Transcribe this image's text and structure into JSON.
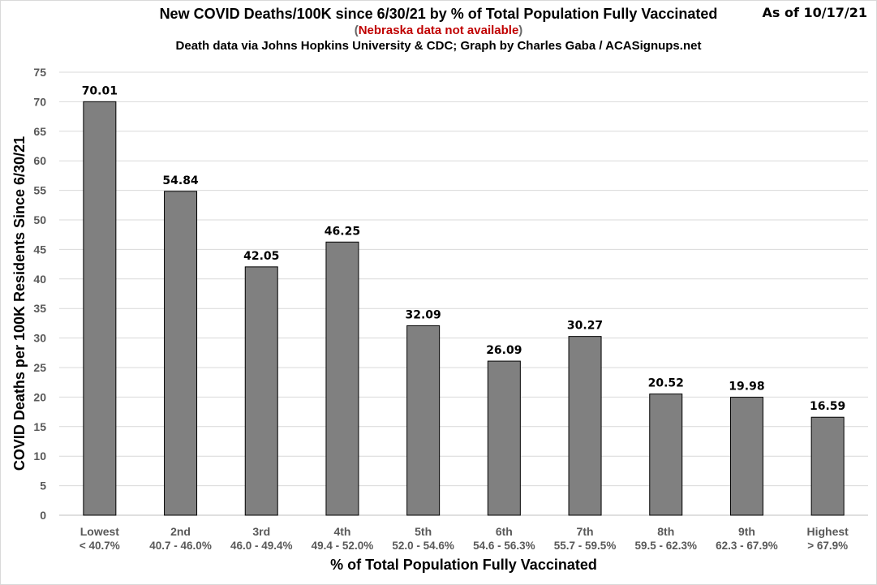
{
  "title": {
    "line1": "New COVID Deaths/100K since 6/30/21 by % of Total Population Fully Vaccinated",
    "line2_open": "(",
    "line2_red": "Nebraska data not available",
    "line2_close": ")",
    "line3": "Death data via Johns Hopkins University & CDC; Graph by Charles Gaba / ACASignups.net"
  },
  "as_of": "As of 10/17/21",
  "chart_data": {
    "type": "bar",
    "title": "New COVID Deaths/100K since 6/30/21 by % of Total Population Fully Vaccinated",
    "xlabel": "% of Total Population Fully Vaccinated",
    "ylabel": "COVID Deaths per 100K Residents Since 6/30/21",
    "ylim": [
      0,
      75
    ],
    "yticks": [
      0,
      5,
      10,
      15,
      20,
      25,
      30,
      35,
      40,
      45,
      50,
      55,
      60,
      65,
      70,
      75
    ],
    "grid": true,
    "bar_color": "#808080",
    "categories": [
      {
        "name": "Lowest",
        "range": "< 40.7%"
      },
      {
        "name": "2nd",
        "range": "40.7 - 46.0%"
      },
      {
        "name": "3rd",
        "range": "46.0 - 49.4%"
      },
      {
        "name": "4th",
        "range": "49.4 - 52.0%"
      },
      {
        "name": "5th",
        "range": "52.0 - 54.6%"
      },
      {
        "name": "6th",
        "range": "54.6 - 56.3%"
      },
      {
        "name": "7th",
        "range": "55.7 - 59.5%"
      },
      {
        "name": "8th",
        "range": "59.5 - 62.3%"
      },
      {
        "name": "9th",
        "range": "62.3 - 67.9%"
      },
      {
        "name": "Highest",
        "range": "> 67.9%"
      }
    ],
    "values": [
      70.01,
      54.84,
      42.05,
      46.25,
      32.09,
      26.09,
      30.27,
      20.52,
      19.98,
      16.59
    ],
    "value_labels": [
      "70.01",
      "54.84",
      "42.05",
      "46.25",
      "32.09",
      "26.09",
      "30.27",
      "20.52",
      "19.98",
      "16.59"
    ]
  }
}
